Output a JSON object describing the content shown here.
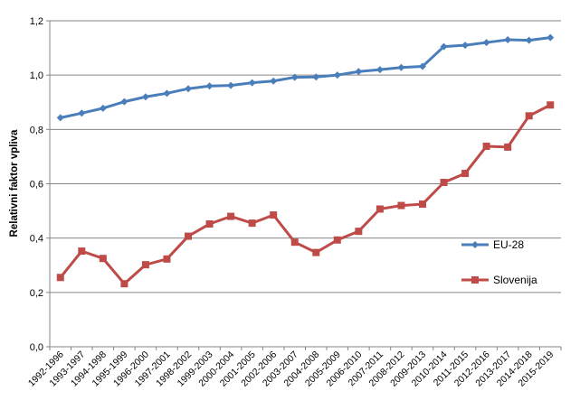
{
  "chart_data": {
    "type": "line",
    "title": "",
    "xlabel": "",
    "ylabel": "Relativni faktor vpliva",
    "ylim": [
      0,
      1.2
    ],
    "yticks": [
      "0,0",
      "0,2",
      "0,4",
      "0,6",
      "0,8",
      "1,0",
      "1,2"
    ],
    "ytick_values": [
      0,
      0.2,
      0.4,
      0.6,
      0.8,
      1.0,
      1.2
    ],
    "grid": "horizontal",
    "legend_position": "right",
    "categories": [
      "1992-1996",
      "1993-1997",
      "1994-1998",
      "1995-1999",
      "1996-2000",
      "1997-2001",
      "1998-2002",
      "1999-2003",
      "2000-2004",
      "2001-2005",
      "2002-2006",
      "2003-2007",
      "2004-2008",
      "2005-2009",
      "2006-2010",
      "2007-2011",
      "2008-2012",
      "2009-2013",
      "2010-2014",
      "2011-2015",
      "2012-2016",
      "2013-2017",
      "2014-2018",
      "2015-2019"
    ],
    "series": [
      {
        "name": "EU-28",
        "color": "#4a7ebb",
        "marker": "diamond",
        "values": [
          0.843,
          0.86,
          0.878,
          0.902,
          0.92,
          0.933,
          0.95,
          0.96,
          0.962,
          0.972,
          0.978,
          0.992,
          0.993,
          1.0,
          1.013,
          1.02,
          1.028,
          1.032,
          1.105,
          1.11,
          1.12,
          1.13,
          1.128,
          1.138
        ]
      },
      {
        "name": "Slovenija",
        "color": "#be4b48",
        "marker": "square",
        "values": [
          0.255,
          0.352,
          0.325,
          0.232,
          0.302,
          0.323,
          0.407,
          0.452,
          0.48,
          0.455,
          0.485,
          0.385,
          0.347,
          0.393,
          0.425,
          0.507,
          0.52,
          0.525,
          0.605,
          0.638,
          0.738,
          0.735,
          0.85,
          0.89
        ]
      }
    ]
  }
}
